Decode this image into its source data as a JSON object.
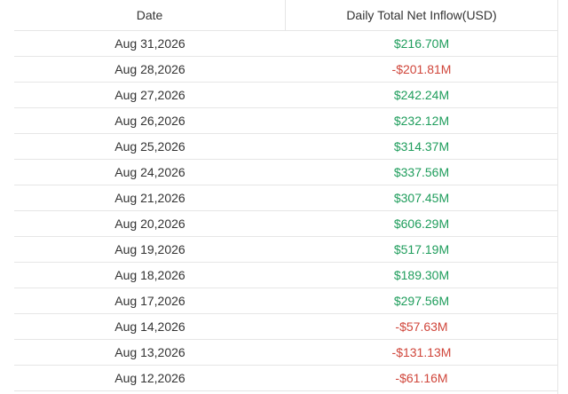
{
  "table": {
    "headers": [
      "Date",
      "Daily Total Net Inflow(USD)"
    ],
    "positive_color": "#1f9d5c",
    "negative_color": "#d0463b",
    "rows": [
      [
        "Aug 31,2026",
        "$216.70M"
      ],
      [
        "Aug 28,2026",
        "-$201.81M"
      ],
      [
        "Aug 27,2026",
        "$242.24M"
      ],
      [
        "Aug 26,2026",
        "$232.12M"
      ],
      [
        "Aug 25,2026",
        "$314.37M"
      ],
      [
        "Aug 24,2026",
        "$337.56M"
      ],
      [
        "Aug 21,2026",
        "$307.45M"
      ],
      [
        "Aug 20,2026",
        "$606.29M"
      ],
      [
        "Aug 19,2026",
        "$517.19M"
      ],
      [
        "Aug 18,2026",
        "$189.30M"
      ],
      [
        "Aug 17,2026",
        "$297.56M"
      ],
      [
        "Aug 14,2026",
        "-$57.63M"
      ],
      [
        "Aug 13,2026",
        "-$131.13M"
      ],
      [
        "Aug 12,2026",
        "-$61.16M"
      ]
    ]
  }
}
